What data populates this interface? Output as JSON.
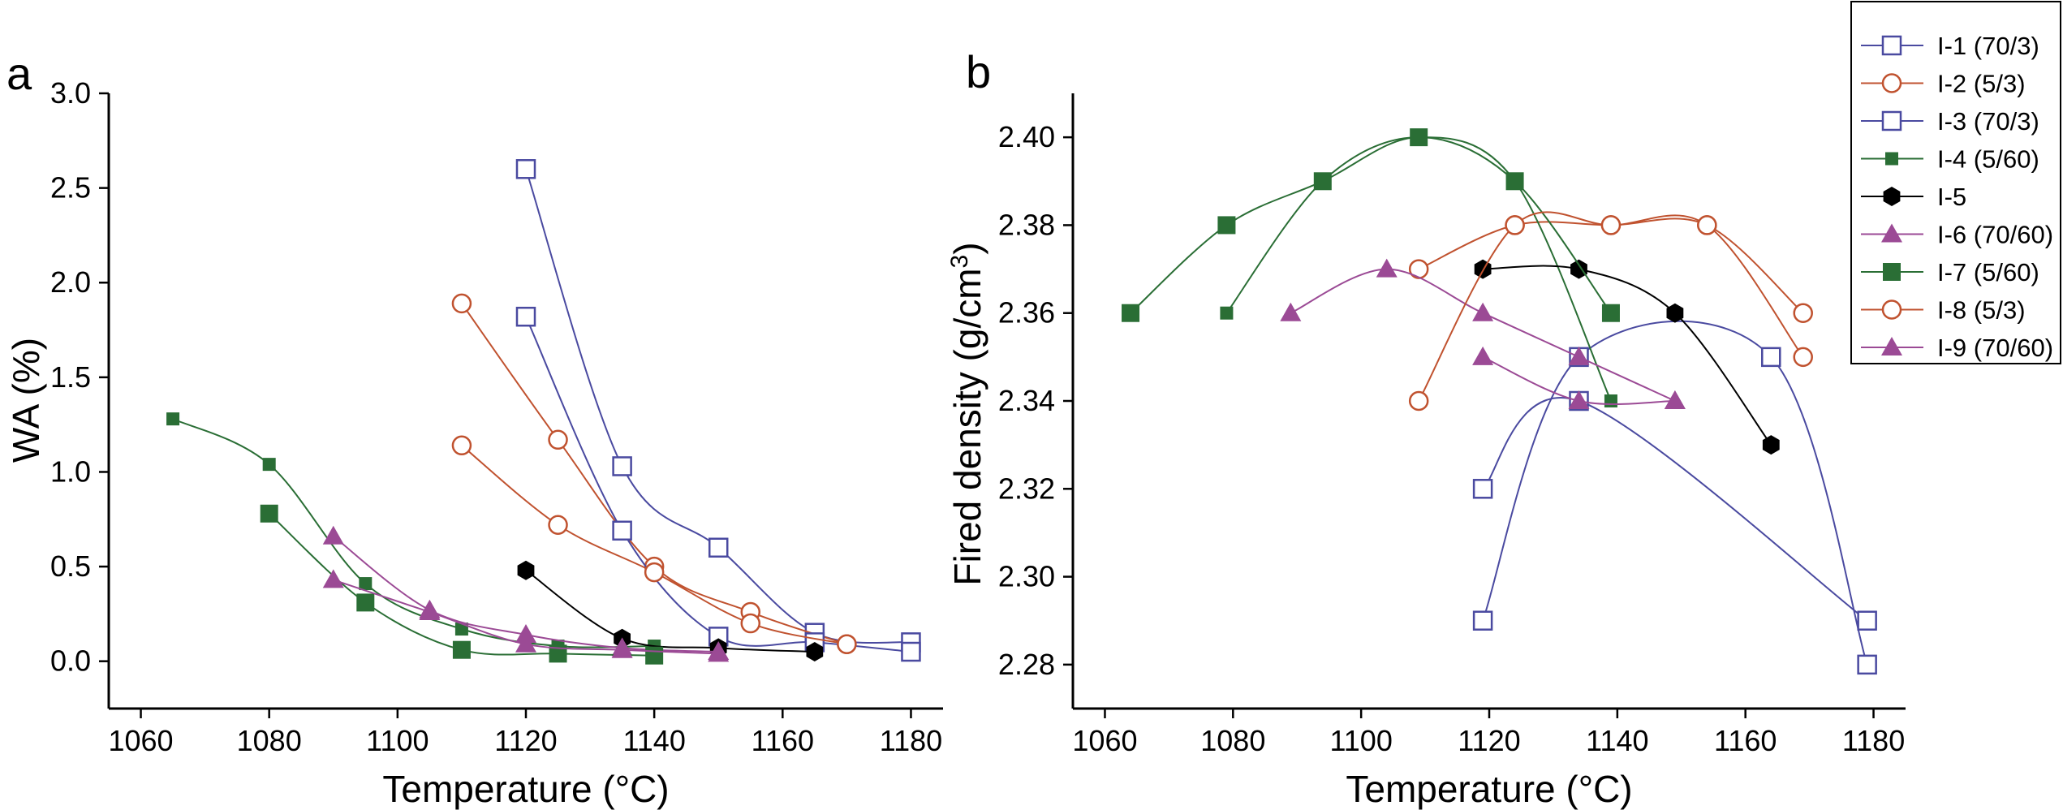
{
  "chart_data": [
    {
      "type": "scatter",
      "panel": "a",
      "xlabel": "Temperature (°C)",
      "ylabel": "WA (%)",
      "xlim": [
        1055,
        1185
      ],
      "ylim": [
        -0.25,
        3.0
      ],
      "xticks": [
        "1060",
        "1080",
        "1100",
        "1120",
        "1140",
        "1160",
        "1180"
      ],
      "yticks": [
        "0.0",
        "0.5",
        "1.0",
        "1.5",
        "2.0",
        "2.5",
        "3.0"
      ],
      "grid": false,
      "series": [
        {
          "name": "I-1 (70/3)",
          "color": "#4a4aa0",
          "marker": "open-square",
          "x": [
            1120,
            1135,
            1150,
            1165,
            1180
          ],
          "y": [
            2.6,
            1.03,
            0.6,
            0.15,
            0.1
          ]
        },
        {
          "name": "I-2 (5/3)",
          "color": "#c0522f",
          "marker": "open-circle",
          "x": [
            1110,
            1125,
            1140,
            1155,
            1170
          ],
          "y": [
            1.89,
            1.17,
            0.5,
            0.26,
            0.09
          ]
        },
        {
          "name": "I-3 (70/3)",
          "color": "#4a4aa0",
          "marker": "open-square",
          "x": [
            1120,
            1135,
            1150,
            1165,
            1180
          ],
          "y": [
            1.82,
            0.69,
            0.13,
            0.1,
            0.05
          ]
        },
        {
          "name": "I-4 (5/60)",
          "color": "#2a6e35",
          "marker": "small-filled-square",
          "x": [
            1065,
            1080,
            1095,
            1110,
            1125,
            1140
          ],
          "y": [
            1.28,
            1.04,
            0.41,
            0.17,
            0.08,
            0.08
          ]
        },
        {
          "name": "I-5",
          "color": "#000000",
          "marker": "filled-hexagon",
          "x": [
            1120,
            1135,
            1150,
            1165
          ],
          "y": [
            0.48,
            0.12,
            0.07,
            0.05
          ]
        },
        {
          "name": "I-6 (70/60)",
          "color": "#9b4a95",
          "marker": "filled-triangle",
          "x": [
            1090,
            1105,
            1120,
            1135,
            1150
          ],
          "y": [
            0.66,
            0.27,
            0.14,
            0.07,
            0.05
          ]
        },
        {
          "name": "I-7 (5/60)",
          "color": "#2a6e35",
          "marker": "filled-square",
          "x": [
            1080,
            1095,
            1110,
            1125,
            1140
          ],
          "y": [
            0.78,
            0.31,
            0.06,
            0.04,
            0.03
          ]
        },
        {
          "name": "I-8 (5/3)",
          "color": "#c0522f",
          "marker": "open-circle",
          "x": [
            1110,
            1125,
            1140,
            1155,
            1170
          ],
          "y": [
            1.14,
            0.72,
            0.47,
            0.2,
            0.09
          ]
        },
        {
          "name": "I-9 (70/60)",
          "color": "#9b4a95",
          "marker": "filled-triangle",
          "x": [
            1090,
            1105,
            1120,
            1135,
            1150
          ],
          "y": [
            0.43,
            0.26,
            0.09,
            0.06,
            0.04
          ]
        }
      ]
    },
    {
      "type": "scatter",
      "panel": "b",
      "xlabel": "Temperature (°C)",
      "ylabel": "Fired density (g/cm³)",
      "xlim": [
        1055,
        1185
      ],
      "ylim": [
        2.27,
        2.41
      ],
      "xticks": [
        "1060",
        "1080",
        "1100",
        "1120",
        "1140",
        "1160",
        "1180"
      ],
      "yticks": [
        "2.28",
        "2.30",
        "2.32",
        "2.34",
        "2.36",
        "2.38",
        "2.40"
      ],
      "grid": false,
      "legend": "top-right",
      "series": [
        {
          "name": "I-1 (70/3)",
          "color": "#4a4aa0",
          "marker": "open-square",
          "x": [
            1119,
            1134,
            1164,
            1179
          ],
          "y": [
            2.29,
            2.35,
            2.35,
            2.28
          ]
        },
        {
          "name": "I-2 (5/3)",
          "color": "#c0522f",
          "marker": "open-circle",
          "x": [
            1109,
            1124,
            1139,
            1154,
            1169
          ],
          "y": [
            2.37,
            2.38,
            2.38,
            2.38,
            2.36
          ]
        },
        {
          "name": "I-3 (70/3)",
          "color": "#4a4aa0",
          "marker": "open-square",
          "x": [
            1119,
            1134,
            1179
          ],
          "y": [
            2.32,
            2.34,
            2.29
          ]
        },
        {
          "name": "I-4 (5/60)",
          "color": "#2a6e35",
          "marker": "small-filled-square",
          "x": [
            1079,
            1094,
            1109,
            1124,
            1139
          ],
          "y": [
            2.36,
            2.39,
            2.4,
            2.39,
            2.34
          ]
        },
        {
          "name": "I-5",
          "color": "#000000",
          "marker": "filled-hexagon",
          "x": [
            1119,
            1134,
            1149,
            1164
          ],
          "y": [
            2.37,
            2.37,
            2.36,
            2.33
          ]
        },
        {
          "name": "I-6 (70/60)",
          "color": "#9b4a95",
          "marker": "filled-triangle",
          "x": [
            1089,
            1104,
            1119,
            1134,
            1149
          ],
          "y": [
            2.36,
            2.37,
            2.36,
            2.35,
            2.34
          ]
        },
        {
          "name": "I-7 (5/60)",
          "color": "#2a6e35",
          "marker": "filled-square",
          "x": [
            1064,
            1079,
            1094,
            1109,
            1124,
            1139
          ],
          "y": [
            2.36,
            2.38,
            2.39,
            2.4,
            2.39,
            2.36
          ]
        },
        {
          "name": "I-8 (5/3)",
          "color": "#c0522f",
          "marker": "open-circle",
          "x": [
            1109,
            1124,
            1139,
            1154,
            1169
          ],
          "y": [
            2.34,
            2.38,
            2.38,
            2.38,
            2.35
          ]
        },
        {
          "name": "I-9 (70/60)",
          "color": "#9b4a95",
          "marker": "filled-triangle",
          "x": [
            1119,
            1134,
            1149
          ],
          "y": [
            2.35,
            2.34,
            2.34
          ]
        }
      ]
    }
  ],
  "legend": {
    "items": [
      {
        "label": "I-1 (70/3)",
        "color": "#4a4aa0",
        "marker": "open-square"
      },
      {
        "label": "I-2 (5/3)",
        "color": "#c0522f",
        "marker": "open-circle"
      },
      {
        "label": "I-3 (70/3)",
        "color": "#4a4aa0",
        "marker": "open-square"
      },
      {
        "label": "I-4 (5/60)",
        "color": "#2a6e35",
        "marker": "small-filled-square"
      },
      {
        "label": "I-5",
        "color": "#000000",
        "marker": "filled-hexagon"
      },
      {
        "label": "I-6 (70/60)",
        "color": "#9b4a95",
        "marker": "filled-triangle"
      },
      {
        "label": "I-7 (5/60)",
        "color": "#2a6e35",
        "marker": "filled-square"
      },
      {
        "label": "I-8 (5/3)",
        "color": "#c0522f",
        "marker": "open-circle"
      },
      {
        "label": "I-9 (70/60)",
        "color": "#9b4a95",
        "marker": "filled-triangle"
      }
    ]
  },
  "panels": {
    "a_label": "a",
    "b_label": "b"
  },
  "ylabel_b": {
    "main": "Fired density (g/cm",
    "sup": "3",
    "tail": ")"
  }
}
